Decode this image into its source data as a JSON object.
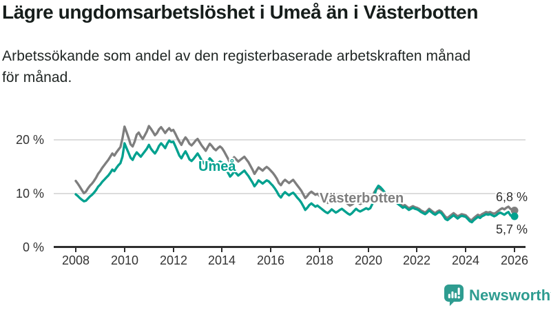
{
  "colors": {
    "umea_line": "#00a18f",
    "vasterbotten_line": "#7e7e7e",
    "axis": "#2e2e2e",
    "gridline": "#dcdcdc",
    "title_text": "#161d1b",
    "brand_teal": "#2e9c90"
  },
  "footer": {
    "brand_name": "Newsworthy",
    "brand_icon": "bar-chart-speech-bubble-icon"
  },
  "chart_data": {
    "type": "line",
    "title": "Lägre ungdomsarbetslöshet i Umeå än i Västerbotten",
    "subtitle_lines": [
      "Arbetssökande som andel av den registerbaserade arbetskraften månad",
      "för månad."
    ],
    "x_unit": "month",
    "x_range": [
      "2008-01",
      "2026-01"
    ],
    "x_tick_labels": [
      "2008",
      "2010",
      "2012",
      "2014",
      "2016",
      "2018",
      "2020",
      "2022",
      "2024",
      "2026"
    ],
    "y_tick_labels": [
      "0 %",
      "10 %",
      "20 %"
    ],
    "y_tick_values": [
      0,
      10,
      20
    ],
    "ylim": [
      0,
      24
    ],
    "grid": "horizontal",
    "legend": "inline-series-labels",
    "series": [
      {
        "name": "Västerbotten",
        "color": "#7e7e7e",
        "end_label": "6,8 %",
        "end_value": 6.8,
        "values": [
          12.3,
          11.8,
          11.2,
          10.6,
          10.0,
          10.3,
          10.9,
          11.4,
          11.8,
          12.3,
          12.9,
          13.6,
          14.1,
          14.7,
          15.2,
          15.7,
          16.2,
          16.8,
          17.4,
          17.0,
          17.6,
          18.1,
          18.6,
          20.2,
          22.4,
          21.4,
          20.3,
          19.1,
          18.7,
          19.6,
          20.9,
          21.3,
          20.6,
          20.1,
          20.8,
          21.5,
          22.5,
          22.0,
          21.4,
          20.8,
          21.2,
          21.9,
          22.3,
          21.8,
          21.2,
          21.7,
          22.1,
          21.6,
          21.8,
          21.1,
          20.3,
          19.6,
          19.0,
          19.8,
          20.4,
          19.9,
          19.2,
          18.9,
          19.3,
          19.8,
          20.1,
          19.5,
          18.9,
          18.4,
          17.9,
          18.6,
          19.2,
          18.8,
          18.3,
          18.0,
          18.4,
          18.7,
          18.4,
          17.8,
          17.1,
          16.4,
          15.6,
          16.1,
          16.7,
          16.3,
          15.9,
          16.2,
          16.5,
          16.8,
          16.3,
          15.8,
          15.1,
          14.4,
          13.6,
          14.2,
          14.8,
          14.5,
          14.2,
          14.6,
          14.9,
          14.6,
          14.2,
          13.8,
          13.3,
          12.7,
          11.9,
          11.5,
          12.1,
          12.5,
          12.2,
          11.9,
          12.2,
          12.5,
          12.0,
          11.5,
          11.0,
          10.5,
          9.8,
          9.1,
          9.5,
          10.0,
          10.3,
          10.0,
          9.7,
          9.9,
          9.5,
          9.2,
          8.9,
          8.5,
          8.2,
          8.5,
          8.9,
          8.6,
          8.3,
          8.5,
          8.7,
          8.9,
          8.6,
          8.3,
          8.0,
          7.7,
          7.9,
          8.2,
          8.6,
          8.3,
          8.0,
          8.2,
          8.4,
          8.6,
          8.3,
          8.5,
          9.2,
          10.2,
          10.8,
          11.0,
          10.8,
          10.5,
          10.2,
          9.9,
          9.7,
          9.5,
          9.1,
          8.8,
          8.5,
          8.2,
          7.9,
          7.6,
          7.8,
          7.5,
          7.2,
          7.4,
          7.6,
          7.4,
          7.3,
          7.1,
          6.8,
          6.6,
          6.4,
          6.7,
          7.1,
          6.8,
          6.5,
          6.3,
          6.6,
          6.8,
          6.6,
          6.1,
          5.6,
          5.4,
          5.7,
          6.0,
          6.3,
          6.0,
          5.7,
          5.9,
          6.1,
          6.0,
          5.9,
          5.5,
          5.1,
          5.0,
          5.4,
          5.7,
          6.0,
          5.8,
          6.1,
          6.3,
          6.5,
          6.4,
          6.5,
          6.3,
          6.2,
          6.4,
          6.7,
          7.0,
          7.2,
          7.0,
          7.3,
          7.5,
          7.1,
          6.9,
          6.8
        ]
      },
      {
        "name": "Umeå",
        "color": "#00a18f",
        "end_label": "5,7 %",
        "end_value": 5.7,
        "values": [
          9.8,
          9.5,
          9.1,
          8.8,
          8.5,
          8.6,
          9.0,
          9.4,
          9.7,
          10.1,
          10.6,
          11.2,
          11.6,
          12.1,
          12.5,
          12.9,
          13.3,
          13.8,
          14.4,
          14.1,
          14.7,
          15.2,
          15.6,
          16.8,
          19.3,
          18.4,
          17.5,
          16.6,
          16.2,
          17.0,
          17.6,
          17.2,
          16.8,
          17.3,
          17.8,
          18.3,
          19.0,
          18.3,
          17.8,
          17.4,
          18.0,
          18.8,
          19.3,
          18.9,
          18.4,
          19.2,
          19.8,
          19.5,
          19.6,
          18.8,
          17.9,
          17.0,
          16.5,
          17.2,
          17.8,
          17.1,
          16.3,
          16.0,
          16.4,
          16.9,
          17.4,
          16.8,
          16.1,
          15.6,
          15.2,
          15.9,
          16.5,
          16.1,
          15.6,
          15.3,
          15.6,
          15.9,
          15.7,
          15.1,
          14.4,
          13.8,
          13.1,
          13.5,
          14.1,
          13.7,
          13.3,
          13.6,
          13.9,
          14.2,
          13.7,
          13.2,
          12.6,
          12.0,
          11.3,
          11.8,
          12.4,
          12.1,
          11.8,
          12.1,
          12.4,
          12.2,
          11.8,
          11.4,
          10.9,
          10.3,
          9.6,
          9.2,
          9.8,
          10.2,
          9.9,
          9.6,
          9.9,
          10.1,
          9.7,
          9.2,
          8.8,
          8.3,
          7.6,
          6.9,
          7.3,
          7.8,
          8.1,
          7.8,
          7.5,
          7.7,
          7.4,
          7.1,
          6.8,
          6.5,
          6.3,
          6.6,
          7.0,
          6.7,
          6.4,
          6.6,
          6.9,
          7.1,
          6.8,
          6.5,
          6.2,
          6.0,
          6.3,
          6.7,
          7.1,
          6.8,
          6.6,
          6.8,
          7.0,
          7.2,
          7.0,
          7.2,
          8.0,
          9.6,
          10.8,
          11.4,
          11.1,
          10.7,
          10.2,
          9.8,
          9.5,
          9.2,
          8.8,
          8.5,
          8.2,
          7.9,
          7.6,
          7.3,
          7.5,
          7.2,
          6.9,
          7.1,
          7.3,
          7.1,
          7.0,
          6.8,
          6.5,
          6.3,
          6.1,
          6.4,
          6.8,
          6.5,
          6.2,
          6.0,
          6.3,
          6.5,
          6.3,
          5.8,
          5.2,
          5.0,
          5.3,
          5.6,
          5.9,
          5.6,
          5.3,
          5.6,
          5.8,
          5.7,
          5.6,
          5.2,
          4.8,
          4.6,
          5.0,
          5.3,
          5.6,
          5.4,
          5.7,
          5.9,
          6.1,
          6.0,
          6.1,
          5.9,
          5.7,
          5.9,
          6.2,
          6.4,
          6.2,
          6.0,
          6.3,
          6.5,
          5.9,
          5.6,
          5.7
        ]
      }
    ]
  }
}
